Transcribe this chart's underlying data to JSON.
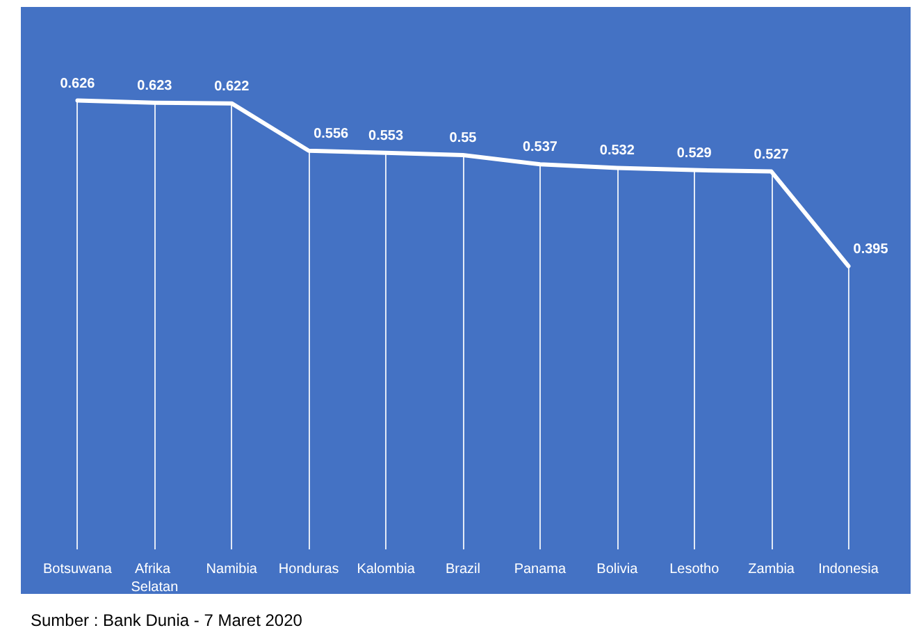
{
  "chart_data": {
    "type": "line",
    "marker": "none",
    "grid": "x",
    "categories": [
      "Botsuwana",
      "Afrika Selatan",
      "Namibia",
      "Honduras",
      "Kalombia",
      "Brazil",
      "Panama",
      "Bolivia",
      "Lesotho",
      "Zambia",
      "Indonesia"
    ],
    "series": [
      {
        "color": "#ffffff",
        "values": [
          0.626,
          0.623,
          0.622,
          0.556,
          0.553,
          0.55,
          0.537,
          0.532,
          0.529,
          0.527,
          0.395
        ]
      }
    ],
    "data_labels": true,
    "annotations": [
      "Sumber : Bank Dunia - 7 Maret 2020"
    ]
  }
}
